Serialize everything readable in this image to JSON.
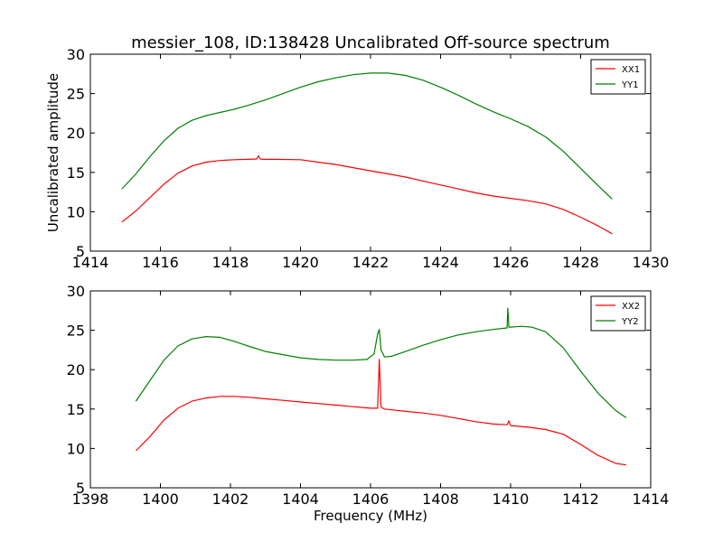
{
  "chart_data": [
    {
      "type": "line",
      "title": "messier_108, ID:138428 Uncalibrated Off-source spectrum",
      "xlabel": "",
      "ylabel": "Uncalibrated amplitude",
      "xlim": [
        1414,
        1430
      ],
      "ylim": [
        5,
        30
      ],
      "xticks": [
        "1414",
        "1416",
        "1418",
        "1420",
        "1422",
        "1424",
        "1426",
        "1428",
        "1430"
      ],
      "yticks": [
        "5",
        "10",
        "15",
        "20",
        "25",
        "30"
      ],
      "grid": false,
      "legend": "top-right",
      "series": [
        {
          "name": "XX1",
          "color": "#ff0000",
          "x": [
            1414.9,
            1415.3,
            1415.7,
            1416.1,
            1416.5,
            1416.9,
            1417.3,
            1417.7,
            1418.1,
            1418.5,
            1418.75,
            1418.8,
            1418.85,
            1418.95,
            1419.3,
            1420.0,
            1420.5,
            1421.0,
            1421.5,
            1422.0,
            1422.5,
            1423.0,
            1423.5,
            1424.0,
            1424.5,
            1425.0,
            1425.5,
            1426.0,
            1426.5,
            1427.0,
            1427.5,
            1428.0,
            1428.5,
            1428.9
          ],
          "y": [
            8.7,
            10.1,
            11.8,
            13.5,
            14.9,
            15.8,
            16.3,
            16.5,
            16.6,
            16.65,
            16.7,
            17.1,
            16.7,
            16.65,
            16.65,
            16.6,
            16.3,
            16.0,
            15.6,
            15.2,
            14.8,
            14.4,
            13.9,
            13.4,
            12.9,
            12.4,
            12.0,
            11.7,
            11.4,
            11.0,
            10.3,
            9.3,
            8.2,
            7.2
          ]
        },
        {
          "name": "YY1",
          "color": "#008000",
          "x": [
            1414.9,
            1415.3,
            1415.7,
            1416.1,
            1416.5,
            1416.9,
            1417.3,
            1417.7,
            1418.1,
            1418.5,
            1419.0,
            1419.5,
            1420.0,
            1420.5,
            1421.0,
            1421.5,
            1422.0,
            1422.5,
            1423.0,
            1423.5,
            1424.0,
            1424.5,
            1425.0,
            1425.5,
            1426.0,
            1426.5,
            1427.0,
            1427.5,
            1428.0,
            1428.5,
            1428.9
          ],
          "y": [
            12.9,
            14.8,
            17.0,
            19.0,
            20.6,
            21.6,
            22.2,
            22.6,
            23.0,
            23.5,
            24.2,
            25.0,
            25.8,
            26.5,
            27.0,
            27.4,
            27.6,
            27.6,
            27.3,
            26.7,
            25.8,
            24.8,
            23.7,
            22.7,
            21.8,
            20.8,
            19.5,
            17.7,
            15.5,
            13.3,
            11.6
          ]
        }
      ]
    },
    {
      "type": "line",
      "title": "",
      "xlabel": "Frequency (MHz)",
      "ylabel": "",
      "xlim": [
        1398,
        1414
      ],
      "ylim": [
        5,
        30
      ],
      "xticks": [
        "1398",
        "1400",
        "1402",
        "1404",
        "1406",
        "1408",
        "1410",
        "1412",
        "1414"
      ],
      "yticks": [
        "5",
        "10",
        "15",
        "20",
        "25",
        "30"
      ],
      "grid": false,
      "legend": "top-right",
      "series": [
        {
          "name": "XX2",
          "color": "#ff0000",
          "x": [
            1399.3,
            1399.7,
            1400.1,
            1400.5,
            1400.9,
            1401.3,
            1401.7,
            1402.1,
            1402.5,
            1403.0,
            1403.5,
            1404.0,
            1404.5,
            1405.0,
            1405.5,
            1406.0,
            1406.2,
            1406.25,
            1406.3,
            1406.35,
            1406.4,
            1406.6,
            1407.0,
            1407.5,
            1408.0,
            1408.5,
            1409.0,
            1409.5,
            1409.9,
            1409.95,
            1410.0,
            1410.5,
            1411.0,
            1411.5,
            1412.0,
            1412.5,
            1413.0,
            1413.3
          ],
          "y": [
            9.7,
            11.5,
            13.6,
            15.1,
            16.0,
            16.4,
            16.6,
            16.6,
            16.5,
            16.3,
            16.1,
            15.9,
            15.7,
            15.5,
            15.3,
            15.1,
            15.1,
            21.3,
            15.3,
            15.1,
            15.0,
            14.9,
            14.7,
            14.5,
            14.2,
            13.8,
            13.4,
            13.1,
            13.0,
            13.5,
            12.9,
            12.7,
            12.4,
            11.8,
            10.5,
            9.1,
            8.1,
            7.9
          ]
        },
        {
          "name": "YY2",
          "color": "#008000",
          "x": [
            1399.3,
            1399.7,
            1400.1,
            1400.5,
            1400.9,
            1401.3,
            1401.7,
            1402.1,
            1402.5,
            1403.0,
            1403.5,
            1404.0,
            1404.5,
            1405.0,
            1405.5,
            1405.9,
            1406.1,
            1406.2,
            1406.25,
            1406.3,
            1406.4,
            1406.6,
            1407.0,
            1407.5,
            1408.0,
            1408.5,
            1409.0,
            1409.5,
            1409.9,
            1409.92,
            1409.95,
            1410.0,
            1410.3,
            1410.6,
            1411.0,
            1411.5,
            1412.0,
            1412.5,
            1413.0,
            1413.3
          ],
          "y": [
            16.0,
            18.6,
            21.2,
            23.0,
            23.9,
            24.2,
            24.1,
            23.6,
            23.0,
            22.3,
            21.9,
            21.5,
            21.3,
            21.2,
            21.2,
            21.3,
            22.0,
            24.5,
            25.1,
            22.5,
            21.6,
            21.7,
            22.3,
            23.1,
            23.8,
            24.4,
            24.8,
            25.1,
            25.3,
            27.8,
            25.4,
            25.4,
            25.5,
            25.4,
            24.8,
            22.8,
            19.8,
            17.0,
            14.8,
            13.9
          ]
        }
      ]
    }
  ]
}
